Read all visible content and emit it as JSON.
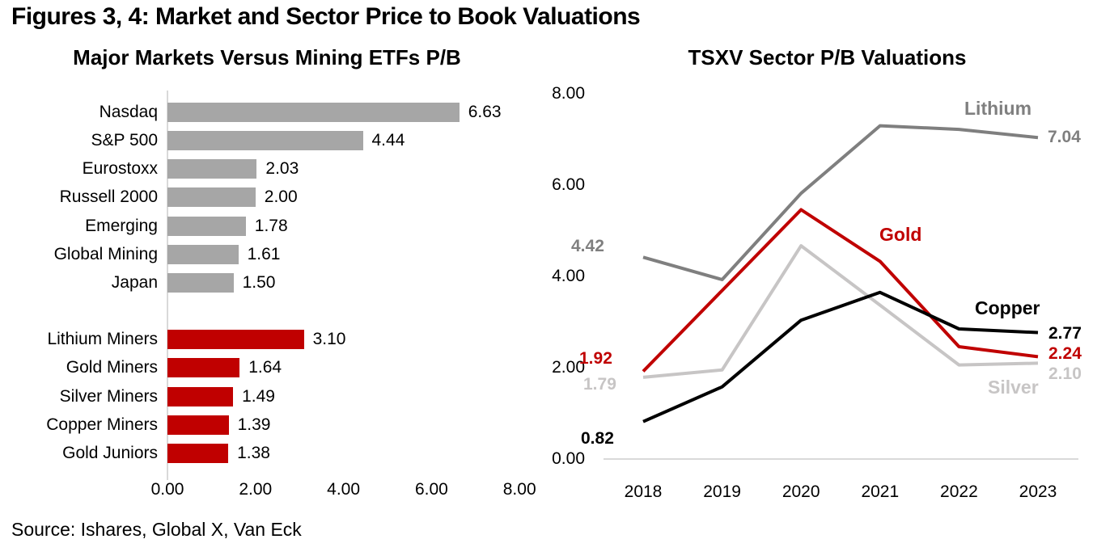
{
  "header": {
    "title": "Figures 3, 4: Market and Sector Price to Book Valuations"
  },
  "footer": {
    "source": "Source: Ishares, Global X, Van Eck"
  },
  "colors": {
    "bar_gray": "#a6a6a6",
    "accent_red": "#c00000",
    "lithium_gray": "#7f7f7f",
    "silver_gray": "#c7c5c5",
    "copper_black": "#000000",
    "axis_gray": "#d9d9d9"
  },
  "chart_data": [
    {
      "type": "bar",
      "orientation": "horizontal",
      "title": "Major Markets Versus Mining ETFs P/B",
      "xlim": [
        0,
        8
      ],
      "x_ticks": [
        "0.00",
        "2.00",
        "4.00",
        "6.00",
        "8.00"
      ],
      "grid": false,
      "groups": [
        {
          "name": "Major Markets",
          "color": "#a6a6a6",
          "items": [
            {
              "label": "Nasdaq",
              "value": 6.63,
              "value_label": "6.63"
            },
            {
              "label": "S&P 500",
              "value": 4.44,
              "value_label": "4.44"
            },
            {
              "label": "Eurostoxx",
              "value": 2.03,
              "value_label": "2.03"
            },
            {
              "label": "Russell 2000",
              "value": 2.0,
              "value_label": "2.00"
            },
            {
              "label": "Emerging",
              "value": 1.78,
              "value_label": "1.78"
            },
            {
              "label": "Global Mining",
              "value": 1.61,
              "value_label": "1.61"
            },
            {
              "label": "Japan",
              "value": 1.5,
              "value_label": "1.50"
            }
          ]
        },
        {
          "name": "Mining ETFs",
          "color": "#c00000",
          "items": [
            {
              "label": "Lithium Miners",
              "value": 3.1,
              "value_label": "3.10"
            },
            {
              "label": "Gold Miners",
              "value": 1.64,
              "value_label": "1.64"
            },
            {
              "label": "Silver Miners",
              "value": 1.49,
              "value_label": "1.49"
            },
            {
              "label": "Copper Miners",
              "value": 1.39,
              "value_label": "1.39"
            },
            {
              "label": "Gold Juniors",
              "value": 1.38,
              "value_label": "1.38"
            }
          ]
        }
      ]
    },
    {
      "type": "line",
      "title": "TSXV Sector P/B Valuations",
      "x": [
        "2018",
        "2019",
        "2020",
        "2021",
        "2022",
        "2023"
      ],
      "ylim": [
        0,
        8
      ],
      "y_ticks": [
        "0.00",
        "2.00",
        "4.00",
        "6.00",
        "8.00"
      ],
      "grid": false,
      "legend_position": "inline-labels",
      "series": [
        {
          "name": "Lithium",
          "color": "#7f7f7f",
          "values": [
            4.42,
            3.93,
            5.82,
            7.3,
            7.22,
            7.04
          ],
          "start_label": "4.42",
          "end_label": "7.04"
        },
        {
          "name": "Gold",
          "color": "#c00000",
          "values": [
            1.92,
            3.69,
            5.46,
            4.33,
            2.46,
            2.24
          ],
          "start_label": "1.92",
          "end_label": "2.24"
        },
        {
          "name": "Silver",
          "color": "#c7c5c5",
          "values": [
            1.79,
            1.95,
            4.67,
            3.37,
            2.06,
            2.1
          ],
          "start_label": "1.79",
          "end_label": "2.10"
        },
        {
          "name": "Copper",
          "color": "#000000",
          "values": [
            0.82,
            1.58,
            3.04,
            3.65,
            2.85,
            2.77
          ],
          "start_label": "0.82",
          "end_label": "2.77"
        }
      ]
    }
  ]
}
